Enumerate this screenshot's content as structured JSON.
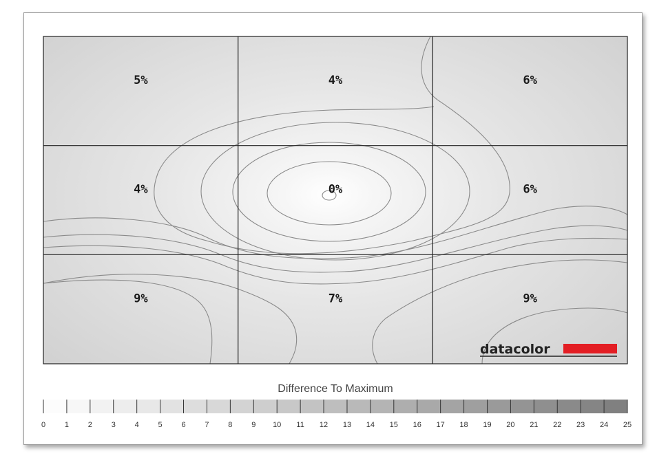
{
  "chart_data": {
    "type": "heatmap",
    "title": "",
    "legend_title": "Difference To Maximum",
    "grid": {
      "rows": 3,
      "cols": 3
    },
    "values": [
      [
        5,
        4,
        6
      ],
      [
        4,
        0,
        6
      ],
      [
        9,
        7,
        9
      ]
    ],
    "value_suffix": "%",
    "scale": {
      "min": 0,
      "max": 25,
      "ticks": [
        "0",
        "1",
        "2",
        "3",
        "4",
        "5",
        "6",
        "7",
        "8",
        "9",
        "10",
        "11",
        "12",
        "13",
        "14",
        "15",
        "16",
        "17",
        "18",
        "19",
        "20",
        "21",
        "22",
        "23",
        "24",
        "25"
      ]
    },
    "colors": {
      "low": "#ffffff",
      "high": "#7d7d7d",
      "contour": "#8a8a8a",
      "brand_red": "#e31e24"
    }
  },
  "brand": {
    "name": "datacolor"
  }
}
